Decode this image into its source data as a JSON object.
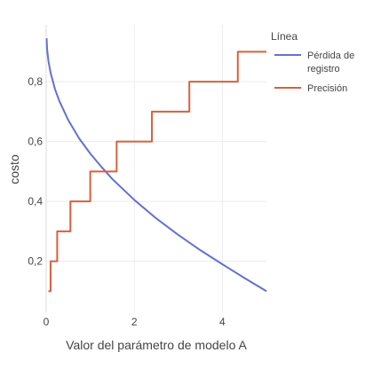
{
  "chart_data": {
    "type": "line",
    "xlabel": "Valor del parámetro de modelo A",
    "ylabel": "costo",
    "xlim": [
      0,
      5
    ],
    "ylim": [
      0.03,
      0.99
    ],
    "x_ticks": [
      0,
      2,
      4
    ],
    "x_tick_labels": [
      "0",
      "2",
      "4"
    ],
    "y_ticks": [
      0.2,
      0.4,
      0.6,
      0.8
    ],
    "y_tick_labels": [
      "0,2",
      "0,4",
      "0,6",
      "0,8"
    ],
    "grid": true,
    "legend": {
      "title": "Línea",
      "position": "right",
      "entries": [
        {
          "label_lines": [
            "Pérdida de",
            "registro"
          ],
          "color": "#6471d0"
        },
        {
          "label_lines": [
            "Precisión"
          ],
          "color": "#d7603f"
        }
      ]
    },
    "series": [
      {
        "name": "Pérdida de registro",
        "color": "#6471d0",
        "x": [
          0.01,
          0.02,
          0.05,
          0.1,
          0.2,
          0.3,
          0.5,
          0.75,
          1.0,
          1.25,
          1.5,
          2.0,
          2.5,
          3.0,
          3.5,
          4.0,
          4.5,
          5.0
        ],
        "y": [
          0.945,
          0.91,
          0.87,
          0.83,
          0.775,
          0.735,
          0.672,
          0.61,
          0.56,
          0.516,
          0.475,
          0.405,
          0.343,
          0.288,
          0.237,
          0.19,
          0.144,
          0.1
        ]
      },
      {
        "name": "Precisión",
        "color": "#d7603f",
        "shape": "step",
        "x": [
          0.05,
          0.1,
          0.25,
          0.55,
          1.0,
          1.6,
          2.4,
          3.25,
          4.35,
          5.0
        ],
        "y": [
          0.1,
          0.2,
          0.3,
          0.4,
          0.5,
          0.6,
          0.7,
          0.8,
          0.9,
          0.9
        ]
      }
    ]
  }
}
